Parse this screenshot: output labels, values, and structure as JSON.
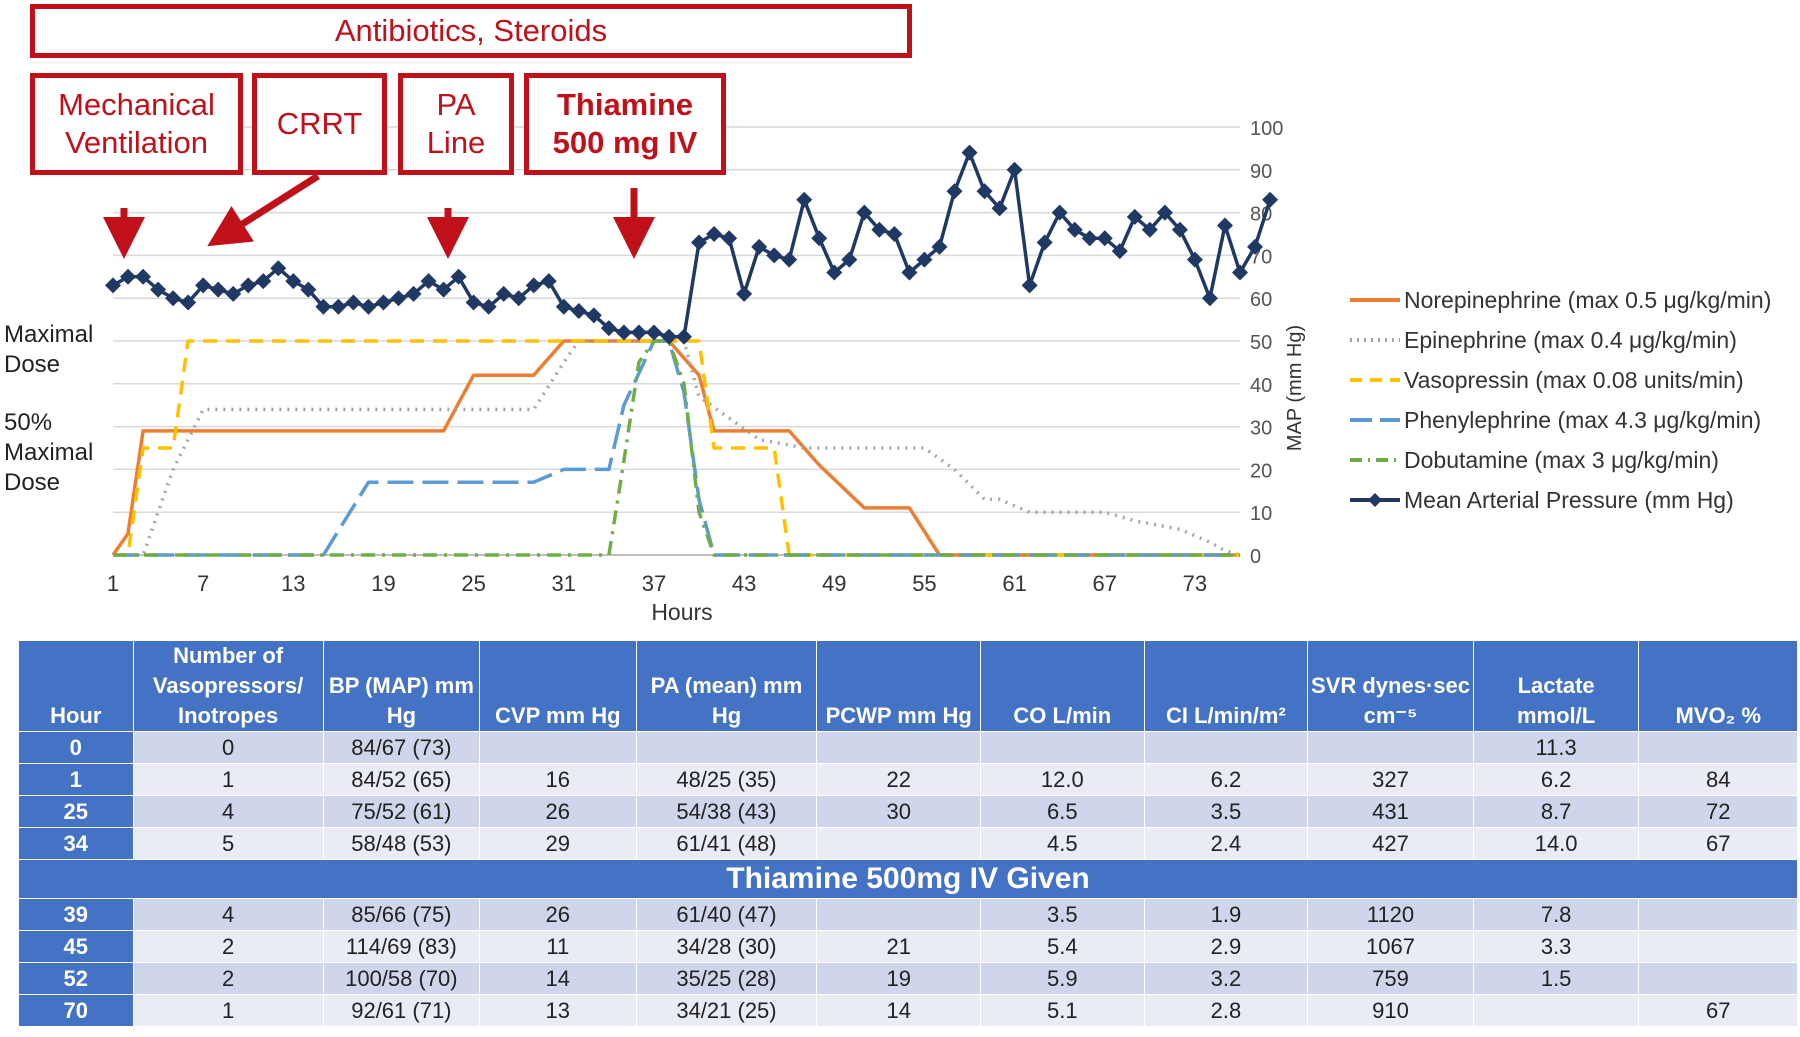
{
  "annotations": {
    "top_banner": "Antibiotics, Steroids",
    "mech_vent": [
      "Mechanical",
      "Ventilation"
    ],
    "crrt": "CRRT",
    "pa_line": [
      "PA",
      "Line"
    ],
    "thiamine": [
      "Thiamine",
      "500 mg IV"
    ]
  },
  "side_labels": {
    "maximal": [
      "Maximal",
      "Dose"
    ],
    "half": [
      "50%",
      "Maximal",
      "Dose"
    ]
  },
  "chart_data": {
    "type": "line",
    "xlabel": "Hours",
    "ylabel_right": "MAP (mm Hg)",
    "x_ticks": [
      1,
      7,
      13,
      19,
      25,
      31,
      37,
      43,
      49,
      55,
      61,
      67,
      73
    ],
    "y_ticks_right": [
      0,
      10,
      20,
      30,
      40,
      50,
      60,
      70,
      80,
      90,
      100
    ],
    "xlim": [
      1,
      76
    ],
    "ylim_right": [
      0,
      100
    ],
    "grid": "horizontal",
    "legend_position": "right",
    "series": [
      {
        "name": "Norepinephrine (max 0.5 μg/kg/min)",
        "color": "#ed7d31",
        "dash": "solid",
        "axis": "dose",
        "points": [
          [
            1,
            0
          ],
          [
            2,
            5
          ],
          [
            3,
            29
          ],
          [
            23,
            29
          ],
          [
            25,
            42
          ],
          [
            29,
            42
          ],
          [
            31,
            50
          ],
          [
            38,
            50
          ],
          [
            40,
            42
          ],
          [
            41,
            29
          ],
          [
            46,
            29
          ],
          [
            48,
            21
          ],
          [
            51,
            11
          ],
          [
            54,
            11
          ],
          [
            56,
            0
          ],
          [
            76,
            0
          ]
        ]
      },
      {
        "name": "Epinephrine (max 0.4 μg/kg/min)",
        "color": "#a5a5a5",
        "dash": "dot",
        "axis": "dose",
        "points": [
          [
            1,
            0
          ],
          [
            3,
            0
          ],
          [
            5,
            20
          ],
          [
            7,
            34
          ],
          [
            29,
            34
          ],
          [
            31,
            45
          ],
          [
            32,
            50
          ],
          [
            39,
            50
          ],
          [
            40,
            37
          ],
          [
            42,
            32
          ],
          [
            44,
            27
          ],
          [
            47,
            25
          ],
          [
            55,
            25
          ],
          [
            57,
            20
          ],
          [
            59,
            13
          ],
          [
            60,
            13
          ],
          [
            62,
            10
          ],
          [
            67,
            10
          ],
          [
            69,
            8
          ],
          [
            72,
            6
          ],
          [
            74,
            3
          ],
          [
            75,
            1
          ],
          [
            76,
            0
          ]
        ]
      },
      {
        "name": "Vasopressin (max 0.08 units/min)",
        "color": "#ffc000",
        "dash": "dash",
        "axis": "dose",
        "points": [
          [
            1,
            0
          ],
          [
            2,
            0
          ],
          [
            3,
            25
          ],
          [
            5,
            25
          ],
          [
            6,
            50
          ],
          [
            40,
            50
          ],
          [
            41,
            25
          ],
          [
            45,
            25
          ],
          [
            46,
            0
          ],
          [
            76,
            0
          ]
        ]
      },
      {
        "name": "Phenylephrine (max 4.3 μg/kg/min)",
        "color": "#5b9bd5",
        "dash": "longdash",
        "axis": "dose",
        "points": [
          [
            1,
            0
          ],
          [
            15,
            0
          ],
          [
            18,
            17
          ],
          [
            29,
            17
          ],
          [
            31,
            20
          ],
          [
            34,
            20
          ],
          [
            35,
            35
          ],
          [
            37,
            50
          ],
          [
            38,
            50
          ],
          [
            39,
            38
          ],
          [
            40,
            13
          ],
          [
            41,
            0
          ],
          [
            76,
            0
          ]
        ]
      },
      {
        "name": "Dobutamine (max 3 μg/kg/min)",
        "color": "#70ad47",
        "dash": "dashdot",
        "axis": "dose",
        "points": [
          [
            1,
            0
          ],
          [
            34,
            0
          ],
          [
            35,
            22
          ],
          [
            36,
            45
          ],
          [
            37,
            50
          ],
          [
            38,
            50
          ],
          [
            39,
            40
          ],
          [
            40,
            10
          ],
          [
            41,
            0
          ],
          [
            76,
            0
          ]
        ]
      },
      {
        "name": "Mean Arterial Pressure (mm Hg)",
        "color": "#203864",
        "dash": "solid",
        "axis": "map",
        "marker": "diamond",
        "points": [
          [
            1,
            63
          ],
          [
            2,
            65
          ],
          [
            3,
            65
          ],
          [
            4,
            62
          ],
          [
            5,
            60
          ],
          [
            6,
            59
          ],
          [
            7,
            63
          ],
          [
            8,
            62
          ],
          [
            9,
            61
          ],
          [
            10,
            63
          ],
          [
            11,
            64
          ],
          [
            12,
            67
          ],
          [
            13,
            64
          ],
          [
            14,
            62
          ],
          [
            15,
            58
          ],
          [
            16,
            58
          ],
          [
            17,
            59
          ],
          [
            18,
            58
          ],
          [
            19,
            59
          ],
          [
            20,
            60
          ],
          [
            21,
            61
          ],
          [
            22,
            64
          ],
          [
            23,
            62
          ],
          [
            24,
            65
          ],
          [
            25,
            59
          ],
          [
            26,
            58
          ],
          [
            27,
            61
          ],
          [
            28,
            60
          ],
          [
            29,
            63
          ],
          [
            30,
            64
          ],
          [
            31,
            58
          ],
          [
            32,
            57
          ],
          [
            33,
            56
          ],
          [
            34,
            53
          ],
          [
            35,
            52
          ],
          [
            36,
            52
          ],
          [
            37,
            52
          ],
          [
            38,
            51
          ],
          [
            39,
            51
          ],
          [
            40,
            73
          ],
          [
            41,
            75
          ],
          [
            42,
            74
          ],
          [
            43,
            61
          ],
          [
            44,
            72
          ],
          [
            45,
            70
          ],
          [
            46,
            69
          ],
          [
            47,
            83
          ],
          [
            48,
            74
          ],
          [
            49,
            66
          ],
          [
            50,
            69
          ],
          [
            51,
            80
          ],
          [
            52,
            76
          ],
          [
            53,
            75
          ],
          [
            54,
            66
          ],
          [
            55,
            69
          ],
          [
            56,
            72
          ],
          [
            57,
            85
          ],
          [
            58,
            94
          ],
          [
            59,
            85
          ],
          [
            60,
            81
          ],
          [
            61,
            90
          ],
          [
            62,
            63
          ],
          [
            63,
            73
          ],
          [
            64,
            80
          ],
          [
            65,
            76
          ],
          [
            66,
            74
          ],
          [
            67,
            74
          ],
          [
            68,
            71
          ],
          [
            69,
            79
          ],
          [
            70,
            76
          ],
          [
            71,
            80
          ],
          [
            72,
            76
          ],
          [
            73,
            69
          ],
          [
            74,
            60
          ],
          [
            75,
            77
          ],
          [
            76,
            66
          ],
          [
            77,
            72
          ],
          [
            78,
            83
          ]
        ]
      }
    ]
  },
  "table": {
    "headers": [
      "Hour",
      "Number of Vasopressors/ Inotropes",
      "BP (MAP) mm Hg",
      "CVP mm Hg",
      "PA (mean) mm Hg",
      "PCWP mm Hg",
      "CO L/min",
      "CI L/min/m²",
      "SVR dynes·sec cm⁻⁵",
      "Lactate mmol/L",
      "MVO₂ %"
    ],
    "rows_before": [
      [
        "0",
        "0",
        "84/67 (73)",
        "",
        "",
        "",
        "",
        "",
        "",
        "11.3",
        ""
      ],
      [
        "1",
        "1",
        "84/52 (65)",
        "16",
        "48/25 (35)",
        "22",
        "12.0",
        "6.2",
        "327",
        "6.2",
        "84"
      ],
      [
        "25",
        "4",
        "75/52 (61)",
        "26",
        "54/38 (43)",
        "30",
        "6.5",
        "3.5",
        "431",
        "8.7",
        "72"
      ],
      [
        "34",
        "5",
        "58/48 (53)",
        "29",
        "61/41 (48)",
        "",
        "4.5",
        "2.4",
        "427",
        "14.0",
        "67"
      ]
    ],
    "banner": "Thiamine 500mg IV Given",
    "rows_after": [
      [
        "39",
        "4",
        "85/66 (75)",
        "26",
        "61/40 (47)",
        "",
        "3.5",
        "1.9",
        "1120",
        "7.8",
        ""
      ],
      [
        "45",
        "2",
        "114/69 (83)",
        "11",
        "34/28 (30)",
        "21",
        "5.4",
        "2.9",
        "1067",
        "3.3",
        ""
      ],
      [
        "52",
        "2",
        "100/58 (70)",
        "14",
        "35/25 (28)",
        "19",
        "5.9",
        "3.2",
        "759",
        "1.5",
        ""
      ],
      [
        "70",
        "1",
        "92/61 (71)",
        "13",
        "34/21 (25)",
        "14",
        "5.1",
        "2.8",
        "910",
        "",
        "67"
      ]
    ]
  }
}
